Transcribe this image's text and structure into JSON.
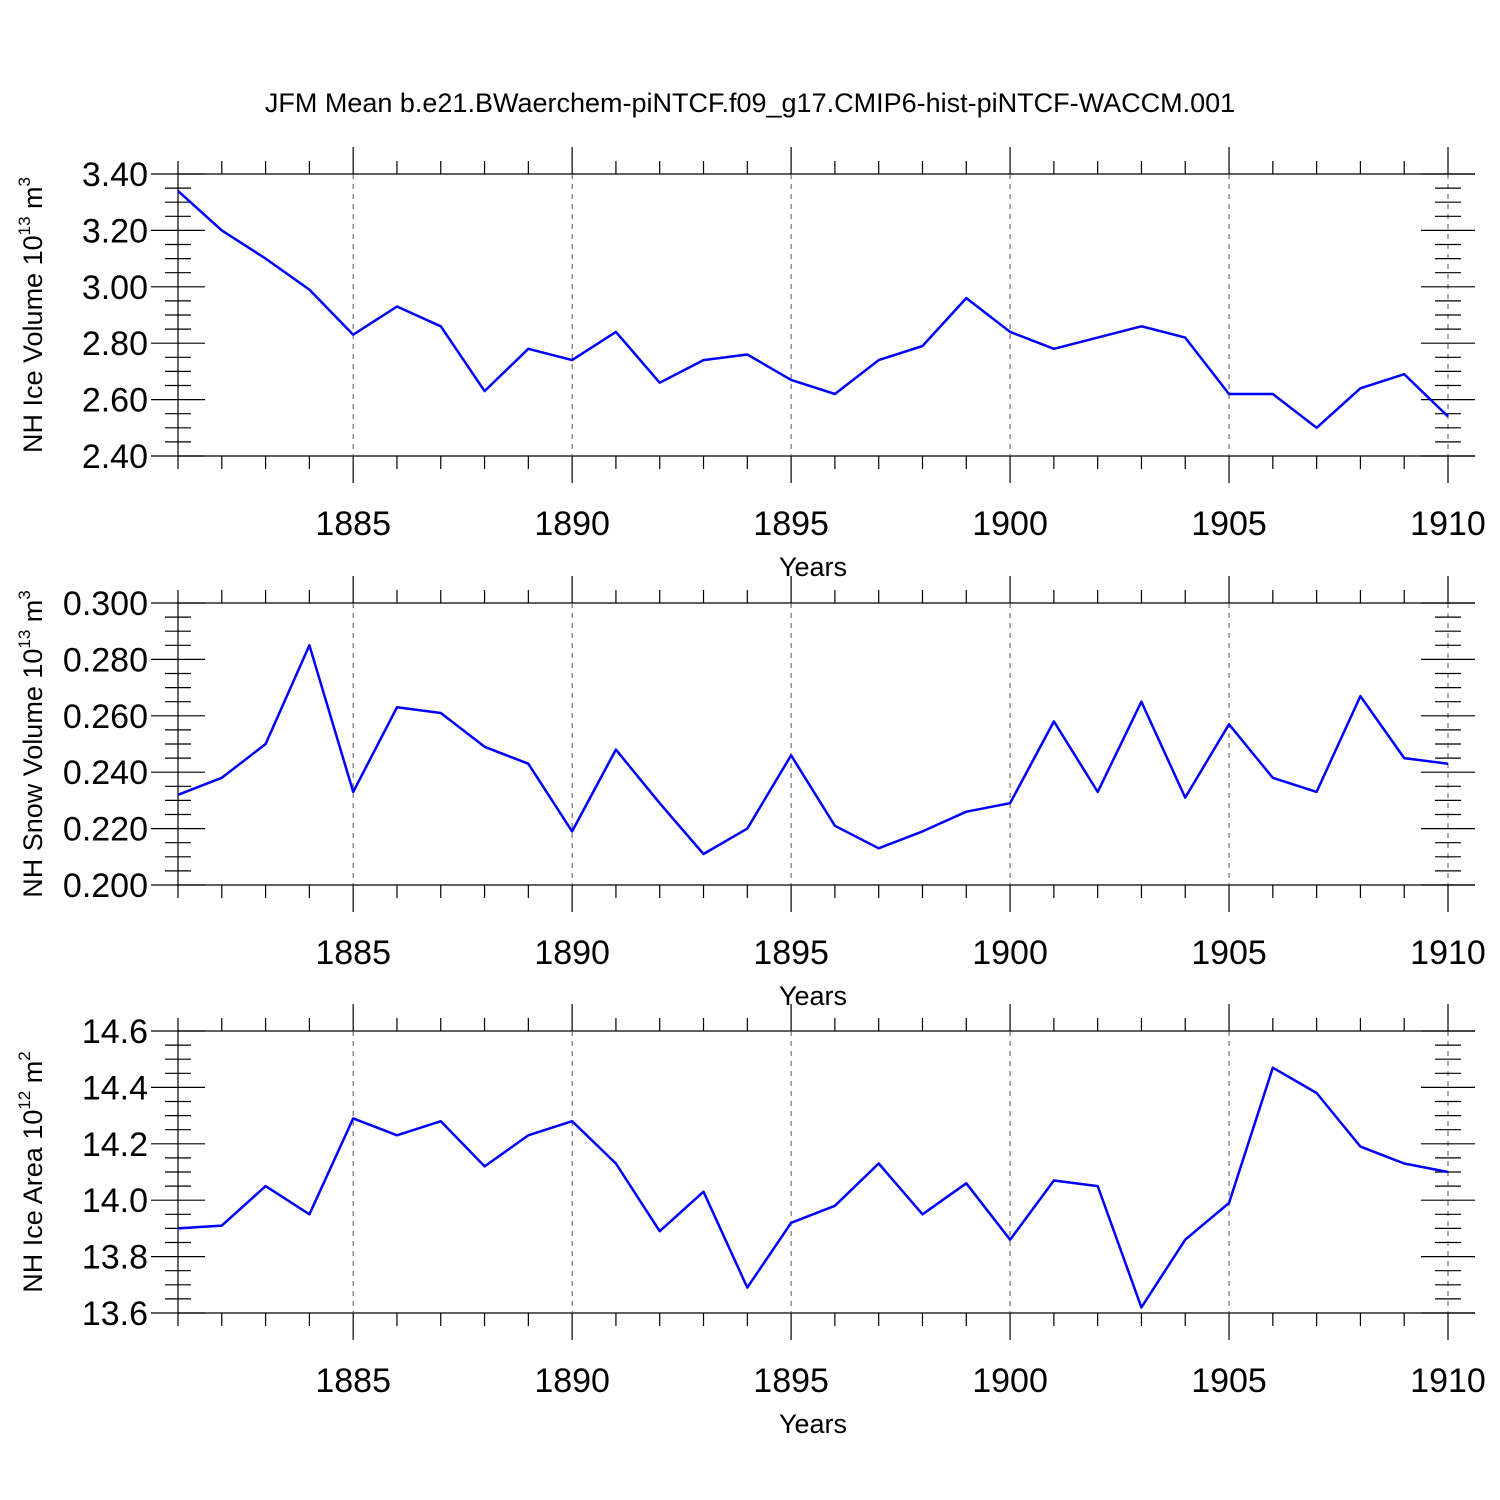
{
  "title": "JFM Mean b.e21.BWaerchem-piNTCF.f09_g17.CMIP6-hist-piNTCF-WACCM.001",
  "line_color": "#0000ff",
  "chart_data": [
    {
      "type": "line",
      "ylabel": {
        "base": "NH Ice Volume 10",
        "sup": "13",
        "mid": " m",
        "sup2": "3"
      },
      "xlabel": "Years",
      "xlim": [
        1881,
        1910
      ],
      "ylim": [
        2.4,
        3.4
      ],
      "grid_x": true,
      "xticks": [
        1885,
        1890,
        1895,
        1900,
        1905,
        1910
      ],
      "xtick_labels": [
        "1885",
        "1890",
        "1895",
        "1900",
        "1905",
        "1910"
      ],
      "yticks": [
        2.4,
        2.6,
        2.8,
        3.0,
        3.2,
        3.4
      ],
      "ytick_labels": [
        "2.40",
        "2.60",
        "2.80",
        "3.00",
        "3.20",
        "3.40"
      ],
      "x": [
        1881,
        1882,
        1883,
        1884,
        1885,
        1886,
        1887,
        1888,
        1889,
        1890,
        1891,
        1892,
        1893,
        1894,
        1895,
        1896,
        1897,
        1898,
        1899,
        1900,
        1901,
        1902,
        1903,
        1904,
        1905,
        1906,
        1907,
        1908,
        1909,
        1910
      ],
      "values": [
        3.34,
        3.2,
        3.1,
        2.99,
        2.83,
        2.93,
        2.86,
        2.63,
        2.78,
        2.74,
        2.84,
        2.66,
        2.74,
        2.76,
        2.67,
        2.62,
        2.74,
        2.79,
        2.96,
        2.84,
        2.78,
        2.82,
        2.86,
        2.82,
        2.62,
        2.62,
        2.5,
        2.64,
        2.69,
        2.54
      ]
    },
    {
      "type": "line",
      "ylabel": {
        "base": "NH Snow Volume 10",
        "sup": "13",
        "mid": " m",
        "sup2": "3"
      },
      "xlabel": "Years",
      "xlim": [
        1881,
        1910
      ],
      "ylim": [
        0.2,
        0.3
      ],
      "grid_x": true,
      "xticks": [
        1885,
        1890,
        1895,
        1900,
        1905,
        1910
      ],
      "xtick_labels": [
        "1885",
        "1890",
        "1895",
        "1900",
        "1905",
        "1910"
      ],
      "yticks": [
        0.2,
        0.22,
        0.24,
        0.26,
        0.28,
        0.3
      ],
      "ytick_labels": [
        "0.200",
        "0.220",
        "0.240",
        "0.260",
        "0.280",
        "0.300"
      ],
      "x": [
        1881,
        1882,
        1883,
        1884,
        1885,
        1886,
        1887,
        1888,
        1889,
        1890,
        1891,
        1892,
        1893,
        1894,
        1895,
        1896,
        1897,
        1898,
        1899,
        1900,
        1901,
        1902,
        1903,
        1904,
        1905,
        1906,
        1907,
        1908,
        1909,
        1910
      ],
      "values": [
        0.232,
        0.238,
        0.25,
        0.285,
        0.233,
        0.263,
        0.261,
        0.249,
        0.243,
        0.219,
        0.248,
        0.229,
        0.211,
        0.22,
        0.246,
        0.221,
        0.213,
        0.219,
        0.226,
        0.229,
        0.258,
        0.233,
        0.265,
        0.231,
        0.257,
        0.238,
        0.233,
        0.267,
        0.245,
        0.243
      ]
    },
    {
      "type": "line",
      "ylabel": {
        "base": "NH Ice Area 10",
        "sup": "12",
        "mid": " m",
        "sup2": "2"
      },
      "xlabel": "Years",
      "xlim": [
        1881,
        1910
      ],
      "ylim": [
        13.6,
        14.6
      ],
      "grid_x": true,
      "xticks": [
        1885,
        1890,
        1895,
        1900,
        1905,
        1910
      ],
      "xtick_labels": [
        "1885",
        "1890",
        "1895",
        "1900",
        "1905",
        "1910"
      ],
      "yticks": [
        13.6,
        13.8,
        14.0,
        14.2,
        14.4,
        14.6
      ],
      "ytick_labels": [
        "13.6",
        "13.8",
        "14.0",
        "14.2",
        "14.4",
        "14.6"
      ],
      "x": [
        1881,
        1882,
        1883,
        1884,
        1885,
        1886,
        1887,
        1888,
        1889,
        1890,
        1891,
        1892,
        1893,
        1894,
        1895,
        1896,
        1897,
        1898,
        1899,
        1900,
        1901,
        1902,
        1903,
        1904,
        1905,
        1906,
        1907,
        1908,
        1909,
        1910
      ],
      "values": [
        13.9,
        13.91,
        14.05,
        13.95,
        14.29,
        14.23,
        14.28,
        14.12,
        14.23,
        14.28,
        14.13,
        13.89,
        14.03,
        13.69,
        13.92,
        13.98,
        14.13,
        13.95,
        14.06,
        13.86,
        14.07,
        14.05,
        13.62,
        13.86,
        13.99,
        14.47,
        14.38,
        14.19,
        14.13,
        14.1
      ]
    }
  ]
}
